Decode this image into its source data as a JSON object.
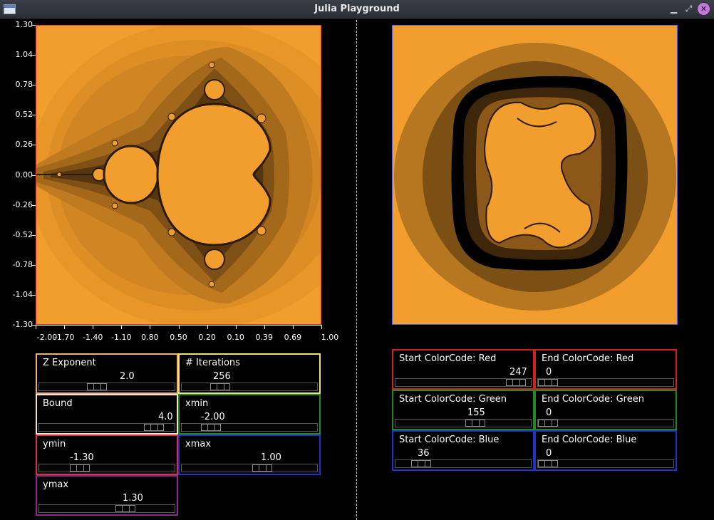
{
  "window": {
    "title": "Julia Playground"
  },
  "colors": {
    "fill_orange": "#f29e2e",
    "mandel_border": "#d23a3a",
    "julia_border": "#5060d8",
    "z_exponent": "#f0b078",
    "iterations": "#f4e070",
    "bound": "#f8e0c8",
    "xmin": "#2a8a2a",
    "ymin": "#d83040",
    "xmax": "#2030c8",
    "ymax": "#8a2a8a",
    "red": "#d02020",
    "green": "#208a20",
    "blue": "#2030c8"
  },
  "mandelbrot_axes": {
    "y_ticks": [
      "1.30",
      "1.04",
      "0.78",
      "0.52",
      "0.26",
      "0.00",
      "-0.26",
      "-0.52",
      "-0.78",
      "-1.04",
      "-1.30"
    ],
    "x_ticks": [
      "-2.00",
      "-1.70",
      "-1.40",
      "-1.10",
      "0.80",
      "0.50",
      "0.20",
      "0.10",
      "0.39",
      "0.69",
      "1.00"
    ]
  },
  "params": {
    "z_exponent": {
      "label": "Z Exponent",
      "value": "2.0",
      "fraction": 0.42
    },
    "iterations": {
      "label": "# Iterations",
      "value": "256",
      "fraction": 0.25
    },
    "bound": {
      "label": "Bound",
      "value": "4.0",
      "fraction": 0.92
    },
    "xmin": {
      "label": "xmin",
      "value": "-2.00",
      "fraction": 0.17
    },
    "ymin": {
      "label": "ymin",
      "value": "-1.30",
      "fraction": 0.27
    },
    "xmax": {
      "label": "xmax",
      "value": "1.00",
      "fraction": 0.62
    },
    "ymax": {
      "label": "ymax",
      "value": "1.30",
      "fraction": 0.67
    }
  },
  "colorcodes": {
    "start_red": {
      "label": "Start ColorCode: Red",
      "value": "247",
      "fraction": 0.97
    },
    "end_red": {
      "label": "End ColorCode: Red",
      "value": "0",
      "fraction": 0.0
    },
    "start_green": {
      "label": "Start ColorCode: Green",
      "value": "155",
      "fraction": 0.61
    },
    "end_green": {
      "label": "End ColorCode: Green",
      "value": "0",
      "fraction": 0.0
    },
    "start_blue": {
      "label": "Start ColorCode: Blue",
      "value": "36",
      "fraction": 0.14
    },
    "end_blue": {
      "label": "End ColorCode: Blue",
      "value": "0",
      "fraction": 0.0
    }
  }
}
